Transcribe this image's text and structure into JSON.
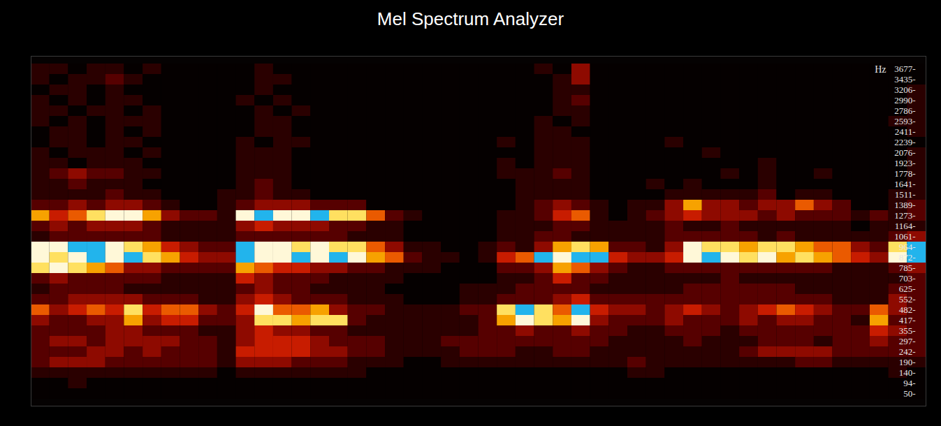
{
  "chart_data": {
    "type": "heatmap",
    "title": "Mel Spectrum Analyzer",
    "y_label": "Hz",
    "tick_labels": "y",
    "yticks": [
      {
        "value": 3677,
        "label": "3677-"
      },
      {
        "value": 3435,
        "label": "3435-"
      },
      {
        "value": 3206,
        "label": "3206-"
      },
      {
        "value": 2990,
        "label": "2990-"
      },
      {
        "value": 2786,
        "label": "2786-"
      },
      {
        "value": 2593,
        "label": "2593-"
      },
      {
        "value": 2411,
        "label": "2411-"
      },
      {
        "value": 2239,
        "label": "2239-"
      },
      {
        "value": 2076,
        "label": "2076-"
      },
      {
        "value": 1923,
        "label": "1923-"
      },
      {
        "value": 1778,
        "label": "1778-"
      },
      {
        "value": 1641,
        "label": "1641-"
      },
      {
        "value": 1511,
        "label": "1511-"
      },
      {
        "value": 1389,
        "label": "1389-"
      },
      {
        "value": 1273,
        "label": "1273-"
      },
      {
        "value": 1164,
        "label": "1164-"
      },
      {
        "value": 1061,
        "label": "1061-"
      },
      {
        "value": 964,
        "label": "964-"
      },
      {
        "value": 872,
        "label": "872-"
      },
      {
        "value": 785,
        "label": "785-"
      },
      {
        "value": 703,
        "label": "703-"
      },
      {
        "value": 625,
        "label": "625-"
      },
      {
        "value": 552,
        "label": "552-"
      },
      {
        "value": 482,
        "label": "482-"
      },
      {
        "value": 417,
        "label": "417-"
      },
      {
        "value": 355,
        "label": "355-"
      },
      {
        "value": 297,
        "label": "297-"
      },
      {
        "value": 242,
        "label": "242-"
      },
      {
        "value": 190,
        "label": "190-"
      },
      {
        "value": 140,
        "label": "140-"
      },
      {
        "value": 94,
        "label": "94-"
      },
      {
        "value": 50,
        "label": "50-"
      }
    ],
    "color_range": [
      0,
      9
    ],
    "cells": [
      [
        1,
        1,
        0,
        1,
        1,
        0,
        1,
        0,
        0,
        0,
        0,
        0,
        1,
        0,
        0,
        0,
        0,
        0,
        0,
        0,
        0,
        0,
        0,
        0,
        0,
        0,
        0,
        1,
        0,
        3,
        0,
        0,
        0,
        0,
        0,
        0,
        0,
        0,
        0,
        0,
        0,
        0,
        0,
        0,
        0,
        0,
        0,
        0
      ],
      [
        1,
        0,
        1,
        1,
        2,
        1,
        0,
        0,
        0,
        0,
        0,
        0,
        1,
        1,
        0,
        0,
        0,
        0,
        0,
        0,
        0,
        0,
        0,
        0,
        0,
        0,
        0,
        0,
        1,
        3,
        0,
        0,
        0,
        0,
        0,
        0,
        0,
        0,
        0,
        0,
        0,
        0,
        0,
        0,
        0,
        0,
        0,
        0
      ],
      [
        0,
        1,
        1,
        0,
        1,
        0,
        0,
        0,
        0,
        0,
        0,
        0,
        1,
        0,
        0,
        0,
        0,
        0,
        0,
        0,
        0,
        0,
        0,
        0,
        0,
        0,
        0,
        0,
        1,
        1,
        0,
        0,
        0,
        0,
        0,
        0,
        0,
        0,
        0,
        0,
        0,
        0,
        0,
        0,
        0,
        0,
        0,
        1
      ],
      [
        1,
        0,
        1,
        0,
        1,
        1,
        0,
        0,
        0,
        0,
        0,
        1,
        0,
        1,
        0,
        0,
        0,
        0,
        0,
        0,
        0,
        0,
        0,
        0,
        0,
        0,
        0,
        0,
        1,
        2,
        0,
        0,
        0,
        0,
        0,
        0,
        0,
        0,
        0,
        0,
        0,
        0,
        0,
        0,
        0,
        0,
        0,
        1
      ],
      [
        1,
        1,
        0,
        1,
        1,
        0,
        1,
        0,
        0,
        0,
        0,
        0,
        1,
        0,
        1,
        0,
        0,
        0,
        0,
        0,
        0,
        0,
        0,
        0,
        0,
        0,
        0,
        0,
        1,
        1,
        0,
        0,
        0,
        0,
        0,
        0,
        0,
        0,
        0,
        0,
        0,
        0,
        0,
        0,
        0,
        0,
        0,
        1
      ],
      [
        1,
        0,
        1,
        0,
        1,
        1,
        1,
        0,
        0,
        0,
        0,
        0,
        1,
        1,
        0,
        0,
        0,
        0,
        0,
        0,
        0,
        0,
        0,
        0,
        0,
        0,
        0,
        1,
        0,
        1,
        0,
        0,
        0,
        0,
        0,
        0,
        0,
        0,
        0,
        0,
        0,
        0,
        0,
        0,
        0,
        0,
        1,
        1
      ],
      [
        0,
        1,
        1,
        0,
        1,
        0,
        1,
        0,
        0,
        0,
        0,
        0,
        1,
        1,
        0,
        0,
        0,
        0,
        0,
        0,
        0,
        0,
        0,
        0,
        0,
        0,
        0,
        1,
        1,
        0,
        0,
        0,
        0,
        0,
        0,
        0,
        0,
        0,
        0,
        0,
        0,
        0,
        0,
        0,
        0,
        0,
        0,
        1
      ],
      [
        0,
        1,
        1,
        0,
        1,
        1,
        0,
        0,
        0,
        0,
        0,
        1,
        0,
        1,
        1,
        0,
        0,
        0,
        0,
        0,
        0,
        0,
        0,
        0,
        0,
        1,
        0,
        1,
        1,
        1,
        0,
        0,
        0,
        0,
        1,
        0,
        0,
        0,
        0,
        0,
        0,
        0,
        0,
        0,
        0,
        0,
        0,
        0
      ],
      [
        1,
        0,
        1,
        1,
        1,
        0,
        1,
        0,
        0,
        0,
        0,
        1,
        1,
        1,
        0,
        0,
        0,
        0,
        0,
        0,
        0,
        0,
        0,
        0,
        0,
        0,
        0,
        1,
        1,
        1,
        0,
        0,
        0,
        0,
        0,
        0,
        1,
        0,
        0,
        0,
        0,
        0,
        0,
        0,
        0,
        0,
        0,
        1
      ],
      [
        1,
        1,
        0,
        1,
        1,
        1,
        0,
        0,
        0,
        0,
        0,
        1,
        1,
        1,
        0,
        0,
        0,
        0,
        0,
        0,
        0,
        0,
        0,
        0,
        0,
        1,
        0,
        1,
        1,
        1,
        0,
        0,
        0,
        0,
        0,
        0,
        0,
        0,
        0,
        1,
        0,
        0,
        0,
        0,
        0,
        0,
        0,
        1
      ],
      [
        1,
        2,
        3,
        2,
        2,
        1,
        1,
        0,
        0,
        0,
        0,
        1,
        1,
        1,
        0,
        0,
        0,
        0,
        0,
        0,
        0,
        0,
        0,
        0,
        0,
        1,
        1,
        1,
        2,
        1,
        0,
        0,
        0,
        0,
        0,
        0,
        0,
        1,
        0,
        1,
        0,
        0,
        1,
        0,
        0,
        0,
        0,
        1
      ],
      [
        1,
        1,
        2,
        1,
        1,
        1,
        0,
        0,
        0,
        0,
        0,
        1,
        2,
        1,
        0,
        0,
        0,
        0,
        0,
        0,
        0,
        0,
        0,
        0,
        0,
        0,
        1,
        1,
        1,
        1,
        0,
        0,
        0,
        1,
        0,
        1,
        0,
        0,
        0,
        1,
        0,
        0,
        0,
        0,
        0,
        0,
        0,
        1
      ],
      [
        1,
        1,
        1,
        1,
        2,
        1,
        1,
        0,
        0,
        0,
        1,
        1,
        2,
        1,
        1,
        0,
        0,
        0,
        0,
        0,
        0,
        0,
        0,
        0,
        0,
        0,
        1,
        1,
        1,
        1,
        0,
        0,
        0,
        0,
        1,
        1,
        1,
        1,
        1,
        2,
        0,
        1,
        1,
        0,
        0,
        0,
        1,
        1
      ],
      [
        2,
        2,
        3,
        2,
        3,
        3,
        2,
        1,
        0,
        0,
        1,
        2,
        3,
        3,
        3,
        2,
        2,
        2,
        0,
        0,
        0,
        0,
        0,
        0,
        0,
        0,
        1,
        2,
        3,
        2,
        1,
        0,
        1,
        1,
        3,
        6,
        3,
        3,
        2,
        3,
        3,
        5,
        3,
        2,
        0,
        0,
        1,
        2
      ],
      [
        6,
        4,
        5,
        7,
        8,
        8,
        6,
        3,
        2,
        2,
        1,
        8,
        9,
        8,
        8,
        9,
        7,
        7,
        5,
        2,
        1,
        0,
        0,
        0,
        0,
        1,
        1,
        2,
        4,
        5,
        1,
        0,
        1,
        2,
        3,
        4,
        3,
        3,
        3,
        2,
        3,
        2,
        2,
        2,
        1,
        2,
        1,
        2
      ],
      [
        2,
        3,
        2,
        3,
        3,
        3,
        2,
        1,
        1,
        1,
        1,
        3,
        4,
        3,
        3,
        3,
        2,
        2,
        1,
        1,
        0,
        0,
        0,
        0,
        0,
        1,
        1,
        1,
        2,
        2,
        1,
        1,
        1,
        1,
        2,
        1,
        1,
        2,
        1,
        1,
        1,
        1,
        1,
        1,
        0,
        1,
        1,
        1
      ],
      [
        1,
        2,
        2,
        2,
        2,
        2,
        2,
        1,
        1,
        1,
        1,
        2,
        2,
        2,
        2,
        2,
        2,
        1,
        1,
        1,
        0,
        0,
        0,
        0,
        0,
        1,
        1,
        2,
        2,
        1,
        1,
        1,
        1,
        1,
        2,
        2,
        2,
        2,
        2,
        1,
        2,
        1,
        1,
        1,
        1,
        1,
        2,
        3
      ],
      [
        8,
        8,
        9,
        9,
        8,
        7,
        6,
        4,
        3,
        2,
        2,
        9,
        8,
        8,
        7,
        8,
        7,
        7,
        5,
        3,
        1,
        1,
        0,
        0,
        1,
        2,
        1,
        3,
        6,
        7,
        6,
        2,
        2,
        1,
        3,
        8,
        7,
        7,
        6,
        7,
        7,
        6,
        5,
        5,
        3,
        2,
        7,
        9
      ],
      [
        8,
        7,
        8,
        9,
        8,
        9,
        7,
        6,
        4,
        3,
        3,
        9,
        8,
        8,
        9,
        8,
        9,
        8,
        6,
        5,
        2,
        1,
        1,
        0,
        1,
        4,
        5,
        9,
        8,
        9,
        9,
        4,
        3,
        3,
        4,
        8,
        9,
        8,
        7,
        8,
        6,
        7,
        6,
        5,
        4,
        3,
        8,
        9
      ],
      [
        7,
        8,
        7,
        6,
        5,
        3,
        3,
        2,
        2,
        2,
        2,
        6,
        5,
        4,
        4,
        3,
        3,
        2,
        2,
        1,
        1,
        1,
        0,
        0,
        0,
        2,
        2,
        3,
        6,
        5,
        3,
        2,
        1,
        1,
        2,
        2,
        2,
        2,
        2,
        2,
        2,
        2,
        2,
        1,
        1,
        1,
        2,
        3
      ],
      [
        2,
        3,
        2,
        2,
        2,
        2,
        2,
        1,
        1,
        1,
        1,
        4,
        3,
        2,
        2,
        2,
        1,
        1,
        1,
        1,
        0,
        0,
        0,
        0,
        0,
        1,
        1,
        2,
        4,
        2,
        2,
        1,
        1,
        1,
        1,
        1,
        1,
        2,
        1,
        1,
        1,
        1,
        1,
        1,
        1,
        1,
        1,
        2
      ],
      [
        1,
        2,
        2,
        2,
        2,
        1,
        1,
        1,
        1,
        1,
        1,
        2,
        3,
        2,
        2,
        1,
        1,
        1,
        1,
        0,
        0,
        0,
        0,
        1,
        1,
        1,
        2,
        2,
        2,
        2,
        1,
        1,
        1,
        1,
        1,
        2,
        2,
        2,
        2,
        2,
        2,
        1,
        1,
        1,
        1,
        1,
        2,
        2
      ],
      [
        2,
        2,
        3,
        3,
        3,
        3,
        2,
        2,
        2,
        1,
        1,
        3,
        4,
        3,
        2,
        2,
        2,
        1,
        1,
        1,
        0,
        0,
        0,
        1,
        1,
        2,
        2,
        2,
        3,
        4,
        2,
        2,
        2,
        2,
        2,
        2,
        2,
        2,
        2,
        2,
        2,
        2,
        2,
        1,
        1,
        1,
        3,
        2
      ],
      [
        5,
        3,
        4,
        5,
        4,
        7,
        4,
        5,
        5,
        3,
        2,
        4,
        8,
        5,
        5,
        6,
        3,
        2,
        2,
        1,
        1,
        1,
        1,
        2,
        2,
        7,
        9,
        7,
        5,
        9,
        4,
        3,
        3,
        2,
        3,
        4,
        3,
        2,
        3,
        4,
        5,
        4,
        3,
        2,
        2,
        5,
        3,
        2
      ],
      [
        3,
        2,
        2,
        3,
        3,
        6,
        3,
        4,
        4,
        2,
        2,
        3,
        7,
        7,
        6,
        7,
        7,
        2,
        1,
        1,
        1,
        1,
        1,
        1,
        2,
        6,
        8,
        7,
        6,
        8,
        3,
        2,
        2,
        2,
        3,
        2,
        2,
        2,
        3,
        2,
        3,
        3,
        2,
        2,
        1,
        6,
        2,
        2
      ],
      [
        2,
        2,
        2,
        2,
        3,
        3,
        2,
        2,
        2,
        1,
        1,
        3,
        4,
        3,
        3,
        2,
        2,
        1,
        1,
        1,
        1,
        1,
        1,
        1,
        2,
        2,
        3,
        2,
        2,
        3,
        2,
        2,
        1,
        1,
        2,
        2,
        2,
        1,
        2,
        2,
        2,
        2,
        2,
        2,
        2,
        4,
        3,
        2
      ],
      [
        2,
        3,
        3,
        2,
        3,
        3,
        3,
        3,
        2,
        2,
        1,
        3,
        4,
        4,
        4,
        3,
        2,
        2,
        2,
        1,
        1,
        1,
        2,
        2,
        2,
        2,
        2,
        2,
        2,
        2,
        2,
        1,
        1,
        1,
        1,
        2,
        1,
        1,
        1,
        2,
        2,
        2,
        1,
        2,
        2,
        3,
        2,
        2
      ],
      [
        2,
        2,
        2,
        3,
        3,
        2,
        3,
        2,
        2,
        2,
        1,
        4,
        4,
        4,
        4,
        3,
        3,
        2,
        2,
        1,
        1,
        1,
        1,
        2,
        2,
        2,
        1,
        1,
        2,
        2,
        1,
        1,
        1,
        1,
        1,
        1,
        1,
        1,
        2,
        3,
        3,
        3,
        3,
        2,
        2,
        2,
        2,
        2
      ],
      [
        2,
        3,
        3,
        3,
        2,
        2,
        2,
        2,
        2,
        2,
        1,
        3,
        3,
        3,
        2,
        2,
        2,
        1,
        1,
        1,
        0,
        0,
        1,
        1,
        1,
        1,
        1,
        1,
        1,
        1,
        1,
        1,
        2,
        1,
        1,
        1,
        1,
        1,
        1,
        1,
        1,
        2,
        2,
        1,
        1,
        1,
        1,
        1
      ],
      [
        1,
        1,
        1,
        1,
        1,
        1,
        1,
        1,
        1,
        1,
        0,
        1,
        1,
        1,
        1,
        1,
        1,
        1,
        0,
        0,
        0,
        0,
        0,
        0,
        0,
        0,
        0,
        0,
        0,
        0,
        0,
        0,
        1,
        1,
        0,
        0,
        0,
        0,
        0,
        0,
        0,
        0,
        0,
        0,
        0,
        0,
        1,
        0
      ],
      [
        0,
        0,
        1,
        0,
        0,
        0,
        0,
        0,
        0,
        0,
        0,
        0,
        0,
        0,
        0,
        0,
        0,
        0,
        0,
        0,
        0,
        0,
        0,
        0,
        0,
        0,
        0,
        0,
        0,
        0,
        0,
        0,
        0,
        0,
        0,
        0,
        0,
        0,
        0,
        0,
        0,
        0,
        0,
        0,
        0,
        0,
        0,
        0
      ],
      [
        0,
        0,
        0,
        0,
        0,
        0,
        0,
        0,
        0,
        0,
        0,
        0,
        0,
        0,
        0,
        0,
        0,
        0,
        0,
        0,
        0,
        0,
        0,
        0,
        0,
        0,
        0,
        0,
        0,
        0,
        0,
        0,
        0,
        0,
        0,
        0,
        0,
        0,
        0,
        0,
        0,
        0,
        0,
        0,
        0,
        0,
        0,
        0
      ]
    ]
  }
}
